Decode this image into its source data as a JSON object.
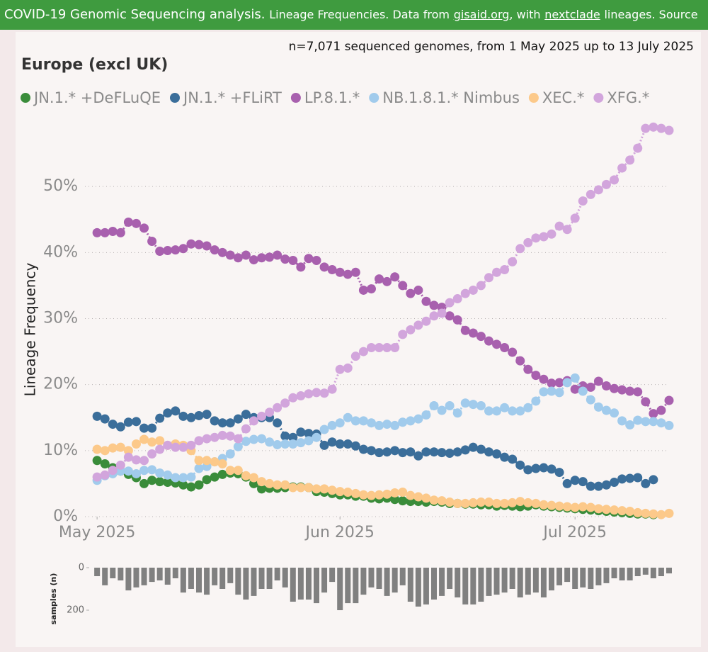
{
  "header": {
    "title": "COVID-19 Genomic Sequencing analysis.",
    "text_1": "Lineage Frequencies. Data from",
    "link_1": "gisaid.org",
    "text_2": ", with",
    "link_2": "nextclade",
    "text_3": "lineages. Source"
  },
  "chart_data": [
    {
      "type": "line",
      "title": "Europe (excl UK)",
      "subtitle": "n=7,071 sequenced genomes, from 1 May 2025 up to 13 July 2025",
      "y_label": "Lineage Frequency",
      "x": [
        0,
        1,
        2,
        3,
        4,
        5,
        6,
        7,
        8,
        9,
        10,
        11,
        12,
        13,
        14,
        15,
        16,
        17,
        18,
        19,
        20,
        21,
        22,
        23,
        24,
        25,
        26,
        27,
        28,
        29,
        30,
        31,
        32,
        33,
        34,
        35,
        36,
        37,
        38,
        39,
        40,
        41,
        42,
        43,
        44,
        45,
        46,
        47,
        48,
        49,
        50,
        51,
        52,
        53,
        54,
        55,
        56,
        57,
        58,
        59,
        60,
        61,
        62,
        63,
        64,
        65,
        66,
        67,
        68,
        69,
        70,
        71,
        72,
        73
      ],
      "xlim": [
        -2,
        73
      ],
      "xticks": [
        {
          "value": 0,
          "label": "May 2025"
        },
        {
          "value": 31,
          "label": "Jun 2025"
        },
        {
          "value": 61,
          "label": "Jul 2025"
        }
      ],
      "ylim": [
        0,
        60
      ],
      "yticks": [
        {
          "value": 0,
          "label": "0%"
        },
        {
          "value": 10,
          "label": "10%"
        },
        {
          "value": 20,
          "label": "20%"
        },
        {
          "value": 30,
          "label": "30%"
        },
        {
          "value": 40,
          "label": "40%"
        },
        {
          "value": 50,
          "label": "50%"
        }
      ],
      "grid": true,
      "series": [
        {
          "name": "JN.1.* +DeFLuQE",
          "color": "#3a8c3a",
          "values": [
            8.5,
            8.0,
            7.4,
            6.9,
            6.4,
            5.9,
            5.0,
            5.5,
            5.3,
            5.2,
            5.1,
            4.8,
            4.5,
            4.8,
            5.6,
            6.0,
            6.4,
            6.6,
            6.5,
            6.0,
            5.0,
            4.2,
            4.3,
            4.3,
            4.4,
            4.5,
            4.5,
            4.4,
            3.8,
            3.7,
            3.5,
            3.3,
            3.3,
            3.1,
            3.1,
            2.8,
            2.7,
            2.8,
            2.6,
            2.4,
            2.3,
            2.3,
            2.2,
            2.3,
            2.2,
            2.0,
            2.0,
            1.9,
            1.9,
            1.8,
            1.8,
            1.6,
            1.7,
            1.6,
            1.5,
            1.6,
            1.8,
            1.6,
            1.5,
            1.4,
            1.3,
            1.2,
            1.1,
            1.0,
            0.9,
            0.8,
            0.7,
            0.6,
            0.5,
            0.4,
            0.4,
            0.3,
            null,
            null
          ]
        },
        {
          "name": "JN.1.* +FLiRT",
          "color": "#3b6e9a",
          "values": [
            15.2,
            14.8,
            14.0,
            13.6,
            14.3,
            14.4,
            13.4,
            13.4,
            14.9,
            15.7,
            16.0,
            15.2,
            15.0,
            15.3,
            15.5,
            14.5,
            14.2,
            14.2,
            14.8,
            15.5,
            15.0,
            15.0,
            15.0,
            14.2,
            12.2,
            12.0,
            12.8,
            12.6,
            12.5,
            10.8,
            11.3,
            11.0,
            11.0,
            10.7,
            10.2,
            10.0,
            9.7,
            9.8,
            10.0,
            9.7,
            9.8,
            9.2,
            9.8,
            9.8,
            9.7,
            9.6,
            9.8,
            10.1,
            10.5,
            10.2,
            9.8,
            9.5,
            9.0,
            8.7,
            7.8,
            7.1,
            7.3,
            7.4,
            7.2,
            6.7,
            5.0,
            5.5,
            5.3,
            4.6,
            4.6,
            4.8,
            5.2,
            5.7,
            5.8,
            5.9,
            5.0,
            5.6,
            null,
            null
          ]
        },
        {
          "name": "LP.8.1.*",
          "color": "#a860ae",
          "values": [
            43.0,
            43.0,
            43.2,
            43.0,
            44.6,
            44.4,
            43.7,
            41.7,
            40.2,
            40.3,
            40.4,
            40.6,
            41.3,
            41.2,
            41.0,
            40.4,
            40.0,
            39.6,
            39.2,
            39.6,
            38.9,
            39.2,
            39.3,
            39.6,
            39.0,
            38.8,
            37.8,
            39.1,
            38.8,
            37.8,
            37.4,
            37.0,
            36.7,
            37.0,
            34.3,
            34.5,
            36.0,
            35.6,
            36.3,
            35.0,
            33.8,
            34.3,
            32.6,
            32.0,
            31.7,
            30.4,
            29.8,
            28.2,
            27.8,
            27.3,
            26.6,
            26.1,
            25.6,
            24.9,
            23.6,
            22.3,
            21.4,
            20.8,
            20.2,
            20.3,
            20.6,
            19.3,
            19.8,
            19.6,
            20.5,
            19.8,
            19.4,
            19.2,
            19.0,
            18.9,
            17.4,
            15.6,
            16.1,
            17.6
          ]
        },
        {
          "name": "NB.1.8.1.* Nimbus",
          "color": "#a1cbec",
          "values": [
            5.5,
            6.2,
            6.5,
            6.9,
            6.9,
            6.5,
            7.0,
            7.1,
            6.6,
            6.3,
            5.9,
            5.9,
            6.0,
            7.3,
            7.6,
            8.3,
            8.8,
            9.5,
            10.6,
            11.4,
            11.7,
            11.8,
            11.3,
            10.9,
            11.0,
            11.0,
            11.2,
            11.5,
            12.0,
            13.2,
            13.8,
            14.2,
            15.0,
            14.5,
            14.5,
            14.2,
            13.8,
            14.0,
            13.8,
            14.3,
            14.5,
            14.8,
            15.4,
            16.8,
            16.1,
            16.8,
            15.7,
            17.2,
            17.0,
            16.8,
            16.0,
            16.0,
            16.5,
            16.0,
            16.0,
            16.5,
            17.5,
            18.9,
            19.0,
            18.8,
            20.3,
            21.0,
            19.0,
            17.7,
            16.6,
            16.1,
            15.7,
            14.5,
            13.9,
            14.6,
            14.4,
            14.4,
            14.2,
            13.8
          ]
        },
        {
          "name": "XEC.*",
          "color": "#fcc98a",
          "values": [
            10.2,
            10.0,
            10.4,
            10.5,
            10.0,
            11.0,
            11.7,
            11.3,
            11.5,
            10.8,
            11.0,
            10.8,
            10.0,
            8.5,
            8.5,
            8.3,
            8.0,
            7.0,
            7.0,
            6.2,
            5.9,
            5.3,
            5.0,
            4.8,
            4.8,
            4.4,
            4.4,
            4.4,
            4.2,
            4.2,
            4.0,
            3.8,
            3.7,
            3.5,
            3.3,
            3.2,
            3.3,
            3.4,
            3.6,
            3.7,
            3.2,
            3.0,
            2.8,
            2.5,
            2.4,
            2.2,
            2.0,
            2.0,
            2.1,
            2.2,
            2.2,
            2.0,
            2.0,
            2.1,
            2.3,
            2.1,
            2.0,
            1.8,
            1.7,
            1.6,
            1.5,
            1.4,
            1.5,
            1.4,
            1.2,
            1.1,
            1.0,
            0.9,
            0.8,
            0.6,
            0.5,
            0.4,
            0.3,
            0.5
          ]
        },
        {
          "name": "XFG.*",
          "color": "#d2a5dc",
          "values": [
            6.0,
            6.3,
            7.0,
            7.8,
            9.0,
            8.6,
            8.5,
            9.5,
            10.2,
            10.8,
            10.5,
            10.5,
            10.8,
            11.5,
            11.8,
            12.0,
            12.3,
            12.2,
            11.8,
            13.3,
            14.5,
            15.2,
            15.8,
            16.5,
            17.2,
            18.0,
            18.3,
            18.6,
            18.8,
            18.7,
            19.3,
            22.3,
            22.5,
            24.3,
            25.0,
            25.6,
            25.6,
            25.6,
            25.6,
            27.6,
            28.3,
            29.0,
            29.6,
            30.4,
            30.8,
            32.4,
            33.0,
            33.8,
            34.3,
            35.0,
            36.2,
            37.0,
            37.4,
            38.6,
            40.6,
            41.5,
            42.2,
            42.4,
            42.8,
            44.0,
            43.5,
            45.2,
            47.8,
            48.8,
            49.5,
            50.3,
            51.0,
            52.8,
            54.0,
            55.8,
            58.8,
            59.0,
            58.8,
            58.5
          ]
        }
      ]
    },
    {
      "type": "bar",
      "y_label": "samples (n)",
      "color": "#808080",
      "x": [
        0,
        1,
        2,
        3,
        4,
        5,
        6,
        7,
        8,
        9,
        10,
        11,
        12,
        13,
        14,
        15,
        16,
        17,
        18,
        19,
        20,
        21,
        22,
        23,
        24,
        25,
        26,
        27,
        28,
        29,
        30,
        31,
        32,
        33,
        34,
        35,
        36,
        37,
        38,
        39,
        40,
        41,
        42,
        43,
        44,
        45,
        46,
        47,
        48,
        49,
        50,
        51,
        52,
        53,
        54,
        55,
        56,
        57,
        58,
        59,
        60,
        61,
        62,
        63,
        64,
        65,
        66,
        67,
        68,
        69,
        70,
        71,
        72,
        73
      ],
      "xlim": [
        -2,
        73
      ],
      "values": [
        40,
        83,
        50,
        60,
        107,
        93,
        83,
        67,
        60,
        80,
        50,
        117,
        100,
        117,
        127,
        83,
        100,
        73,
        127,
        150,
        133,
        100,
        100,
        60,
        93,
        160,
        150,
        150,
        167,
        117,
        67,
        200,
        167,
        167,
        127,
        93,
        100,
        133,
        117,
        83,
        160,
        183,
        173,
        150,
        133,
        100,
        140,
        173,
        173,
        160,
        133,
        127,
        117,
        100,
        140,
        127,
        117,
        140,
        107,
        83,
        67,
        100,
        93,
        100,
        83,
        73,
        50,
        60,
        60,
        40,
        33,
        50,
        40,
        27
      ],
      "ylim": [
        0,
        250
      ],
      "yticks": [
        0,
        200
      ]
    }
  ]
}
